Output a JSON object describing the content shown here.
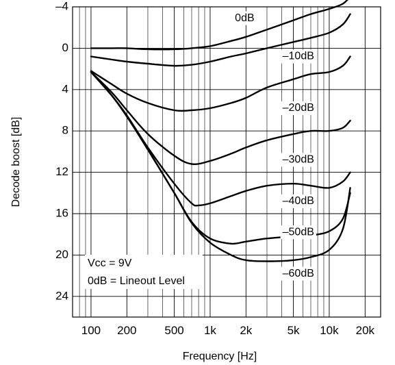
{
  "chart_data": {
    "type": "line",
    "title": "",
    "xlabel": "Frequency [Hz]",
    "ylabel": "Decode boost [dB]",
    "x_scale": "log",
    "xlim": [
      70,
      27000
    ],
    "ylim": [
      -4,
      26
    ],
    "y_inverted": true,
    "grid": true,
    "x_ticks": [
      {
        "value": 100,
        "label": "100"
      },
      {
        "value": 200,
        "label": "200"
      },
      {
        "value": 500,
        "label": "500"
      },
      {
        "value": 1000,
        "label": "1k"
      },
      {
        "value": 2000,
        "label": "2k"
      },
      {
        "value": 5000,
        "label": "5k"
      },
      {
        "value": 10000,
        "label": "10k"
      },
      {
        "value": 20000,
        "label": "20k"
      }
    ],
    "y_ticks": [
      {
        "value": -4,
        "label": "–4"
      },
      {
        "value": 0,
        "label": "0"
      },
      {
        "value": 4,
        "label": "4"
      },
      {
        "value": 8,
        "label": "8"
      },
      {
        "value": 12,
        "label": "12"
      },
      {
        "value": 16,
        "label": "16"
      },
      {
        "value": 20,
        "label": "20"
      },
      {
        "value": 24,
        "label": "24"
      }
    ],
    "annotations": [
      "Vcc = 9V",
      "0dB = Lineout Level"
    ],
    "series": [
      {
        "name": "0dB",
        "label_at": [
          1950,
          -2.9
        ],
        "points": [
          [
            100,
            0
          ],
          [
            150,
            0
          ],
          [
            200,
            0
          ],
          [
            300,
            0.1
          ],
          [
            500,
            0.1
          ],
          [
            700,
            0
          ],
          [
            1000,
            -0.2
          ],
          [
            1500,
            -0.7
          ],
          [
            2000,
            -1.1
          ],
          [
            3000,
            -1.8
          ],
          [
            5000,
            -2.7
          ],
          [
            7000,
            -3.3
          ],
          [
            10000,
            -3.8
          ],
          [
            13000,
            -4.3
          ],
          [
            15000,
            -5
          ]
        ]
      },
      {
        "name": "–10dB",
        "label_at": [
          5500,
          0.8
        ],
        "points": [
          [
            100,
            0.8
          ],
          [
            150,
            1.1
          ],
          [
            200,
            1.3
          ],
          [
            300,
            1.5
          ],
          [
            500,
            1.7
          ],
          [
            700,
            1.6
          ],
          [
            1000,
            1.3
          ],
          [
            1500,
            0.8
          ],
          [
            2000,
            0.5
          ],
          [
            3000,
            0
          ],
          [
            5000,
            -0.6
          ],
          [
            7000,
            -1
          ],
          [
            10000,
            -1.5
          ],
          [
            13000,
            -2.3
          ],
          [
            15000,
            -3.3
          ]
        ]
      },
      {
        "name": "–20dB",
        "label_at": [
          5500,
          5.8
        ],
        "points": [
          [
            100,
            2.2
          ],
          [
            150,
            3.5
          ],
          [
            200,
            4.4
          ],
          [
            300,
            5.3
          ],
          [
            500,
            6
          ],
          [
            700,
            6
          ],
          [
            1000,
            5.8
          ],
          [
            1500,
            5.3
          ],
          [
            2000,
            4.8
          ],
          [
            3000,
            3.8
          ],
          [
            5000,
            3
          ],
          [
            7000,
            2.5
          ],
          [
            10000,
            2.3
          ],
          [
            13000,
            1.7
          ],
          [
            15000,
            0.8
          ]
        ]
      },
      {
        "name": "–30dB",
        "label_at": [
          5500,
          10.8
        ],
        "points": [
          [
            100,
            2.3
          ],
          [
            150,
            4.3
          ],
          [
            200,
            6
          ],
          [
            300,
            8.3
          ],
          [
            500,
            10.4
          ],
          [
            700,
            11.2
          ],
          [
            1000,
            10.9
          ],
          [
            1500,
            10.2
          ],
          [
            2000,
            9.6
          ],
          [
            3000,
            8.9
          ],
          [
            5000,
            8.3
          ],
          [
            7000,
            8
          ],
          [
            10000,
            8
          ],
          [
            13000,
            7.7
          ],
          [
            15000,
            7
          ]
        ]
      },
      {
        "name": "–40dB",
        "label_at": [
          5500,
          14.8
        ],
        "points": [
          [
            100,
            2.3
          ],
          [
            150,
            4.6
          ],
          [
            200,
            6.5
          ],
          [
            300,
            9.6
          ],
          [
            500,
            13.1
          ],
          [
            700,
            15
          ],
          [
            800,
            15.2
          ],
          [
            1000,
            15
          ],
          [
            1500,
            14.3
          ],
          [
            2000,
            13.8
          ],
          [
            3000,
            13.3
          ],
          [
            5000,
            13.1
          ],
          [
            7000,
            13.3
          ],
          [
            10000,
            13.5
          ],
          [
            13000,
            12.9
          ],
          [
            15000,
            12
          ]
        ]
      },
      {
        "name": "–50dB",
        "label_at": [
          5500,
          17.8
        ],
        "points": [
          [
            100,
            2.3
          ],
          [
            150,
            4.6
          ],
          [
            200,
            6.6
          ],
          [
            300,
            9.8
          ],
          [
            500,
            14
          ],
          [
            700,
            16.8
          ],
          [
            1000,
            18.4
          ],
          [
            1500,
            18.9
          ],
          [
            2000,
            18.7
          ],
          [
            3000,
            18.4
          ],
          [
            5000,
            18.2
          ],
          [
            7000,
            18.1
          ],
          [
            10000,
            17.7
          ],
          [
            13000,
            16.5
          ],
          [
            15000,
            14
          ]
        ]
      },
      {
        "name": "–60dB",
        "label_at": [
          5500,
          21.8
        ],
        "points": [
          [
            100,
            2.3
          ],
          [
            150,
            4.6
          ],
          [
            200,
            6.6
          ],
          [
            300,
            9.8
          ],
          [
            500,
            14
          ],
          [
            700,
            16.9
          ],
          [
            1000,
            18.8
          ],
          [
            1500,
            20
          ],
          [
            2000,
            20.5
          ],
          [
            3000,
            20.6
          ],
          [
            5000,
            20.5
          ],
          [
            7000,
            20.2
          ],
          [
            10000,
            19.5
          ],
          [
            13000,
            17.5
          ],
          [
            15000,
            13.5
          ]
        ]
      }
    ]
  }
}
